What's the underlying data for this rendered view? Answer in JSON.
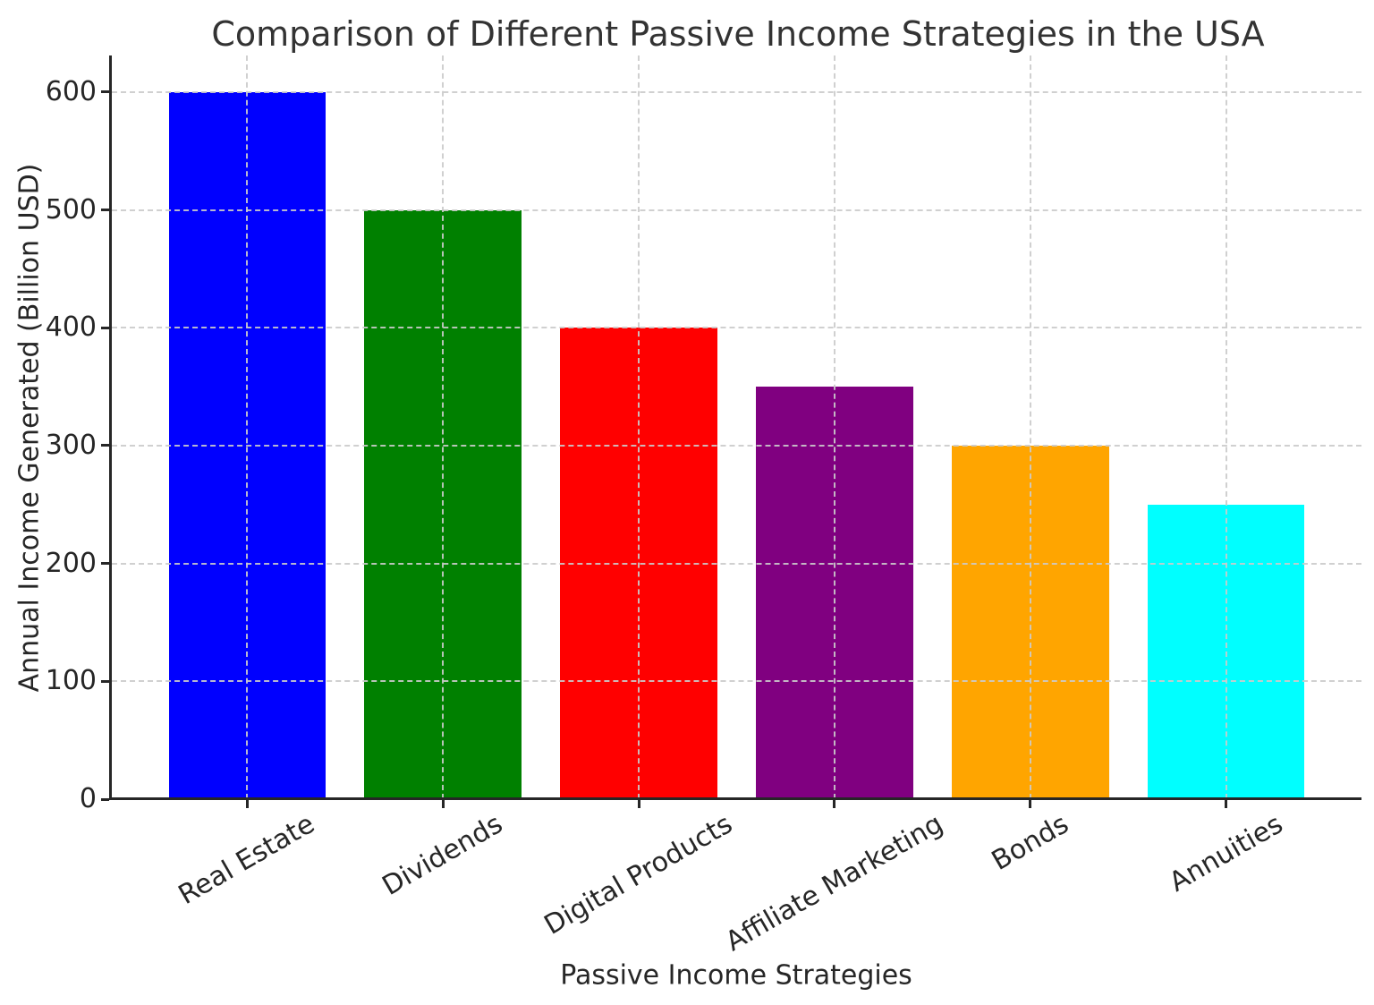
{
  "chart_data": {
    "type": "bar",
    "title": "Comparison of Different Passive Income Strategies in the USA",
    "xlabel": "Passive Income Strategies",
    "ylabel": "Annual Income Generated (Billion USD)",
    "categories": [
      "Real Estate",
      "Dividends",
      "Digital Products",
      "Affiliate Marketing",
      "Bonds",
      "Annuities"
    ],
    "values": [
      600,
      500,
      400,
      350,
      300,
      250
    ],
    "bar_colors": [
      "#0000ff",
      "#008000",
      "#ff0000",
      "#800080",
      "#ffa500",
      "#00ffff"
    ],
    "yticks": [
      "0",
      "100",
      "200",
      "300",
      "400",
      "500",
      "600"
    ],
    "ytick_values": [
      0,
      100,
      200,
      300,
      400,
      500,
      600
    ],
    "ylim": [
      0,
      631
    ],
    "xtick_rotation_deg": 30,
    "grid": "dashed",
    "grid_color": "#cbcbcb",
    "spine_color": "#262626",
    "text_color": "#262626",
    "title_color": "#333333",
    "background_color": "#ffffff",
    "legend": "none",
    "bar_width_fraction": 0.8
  }
}
